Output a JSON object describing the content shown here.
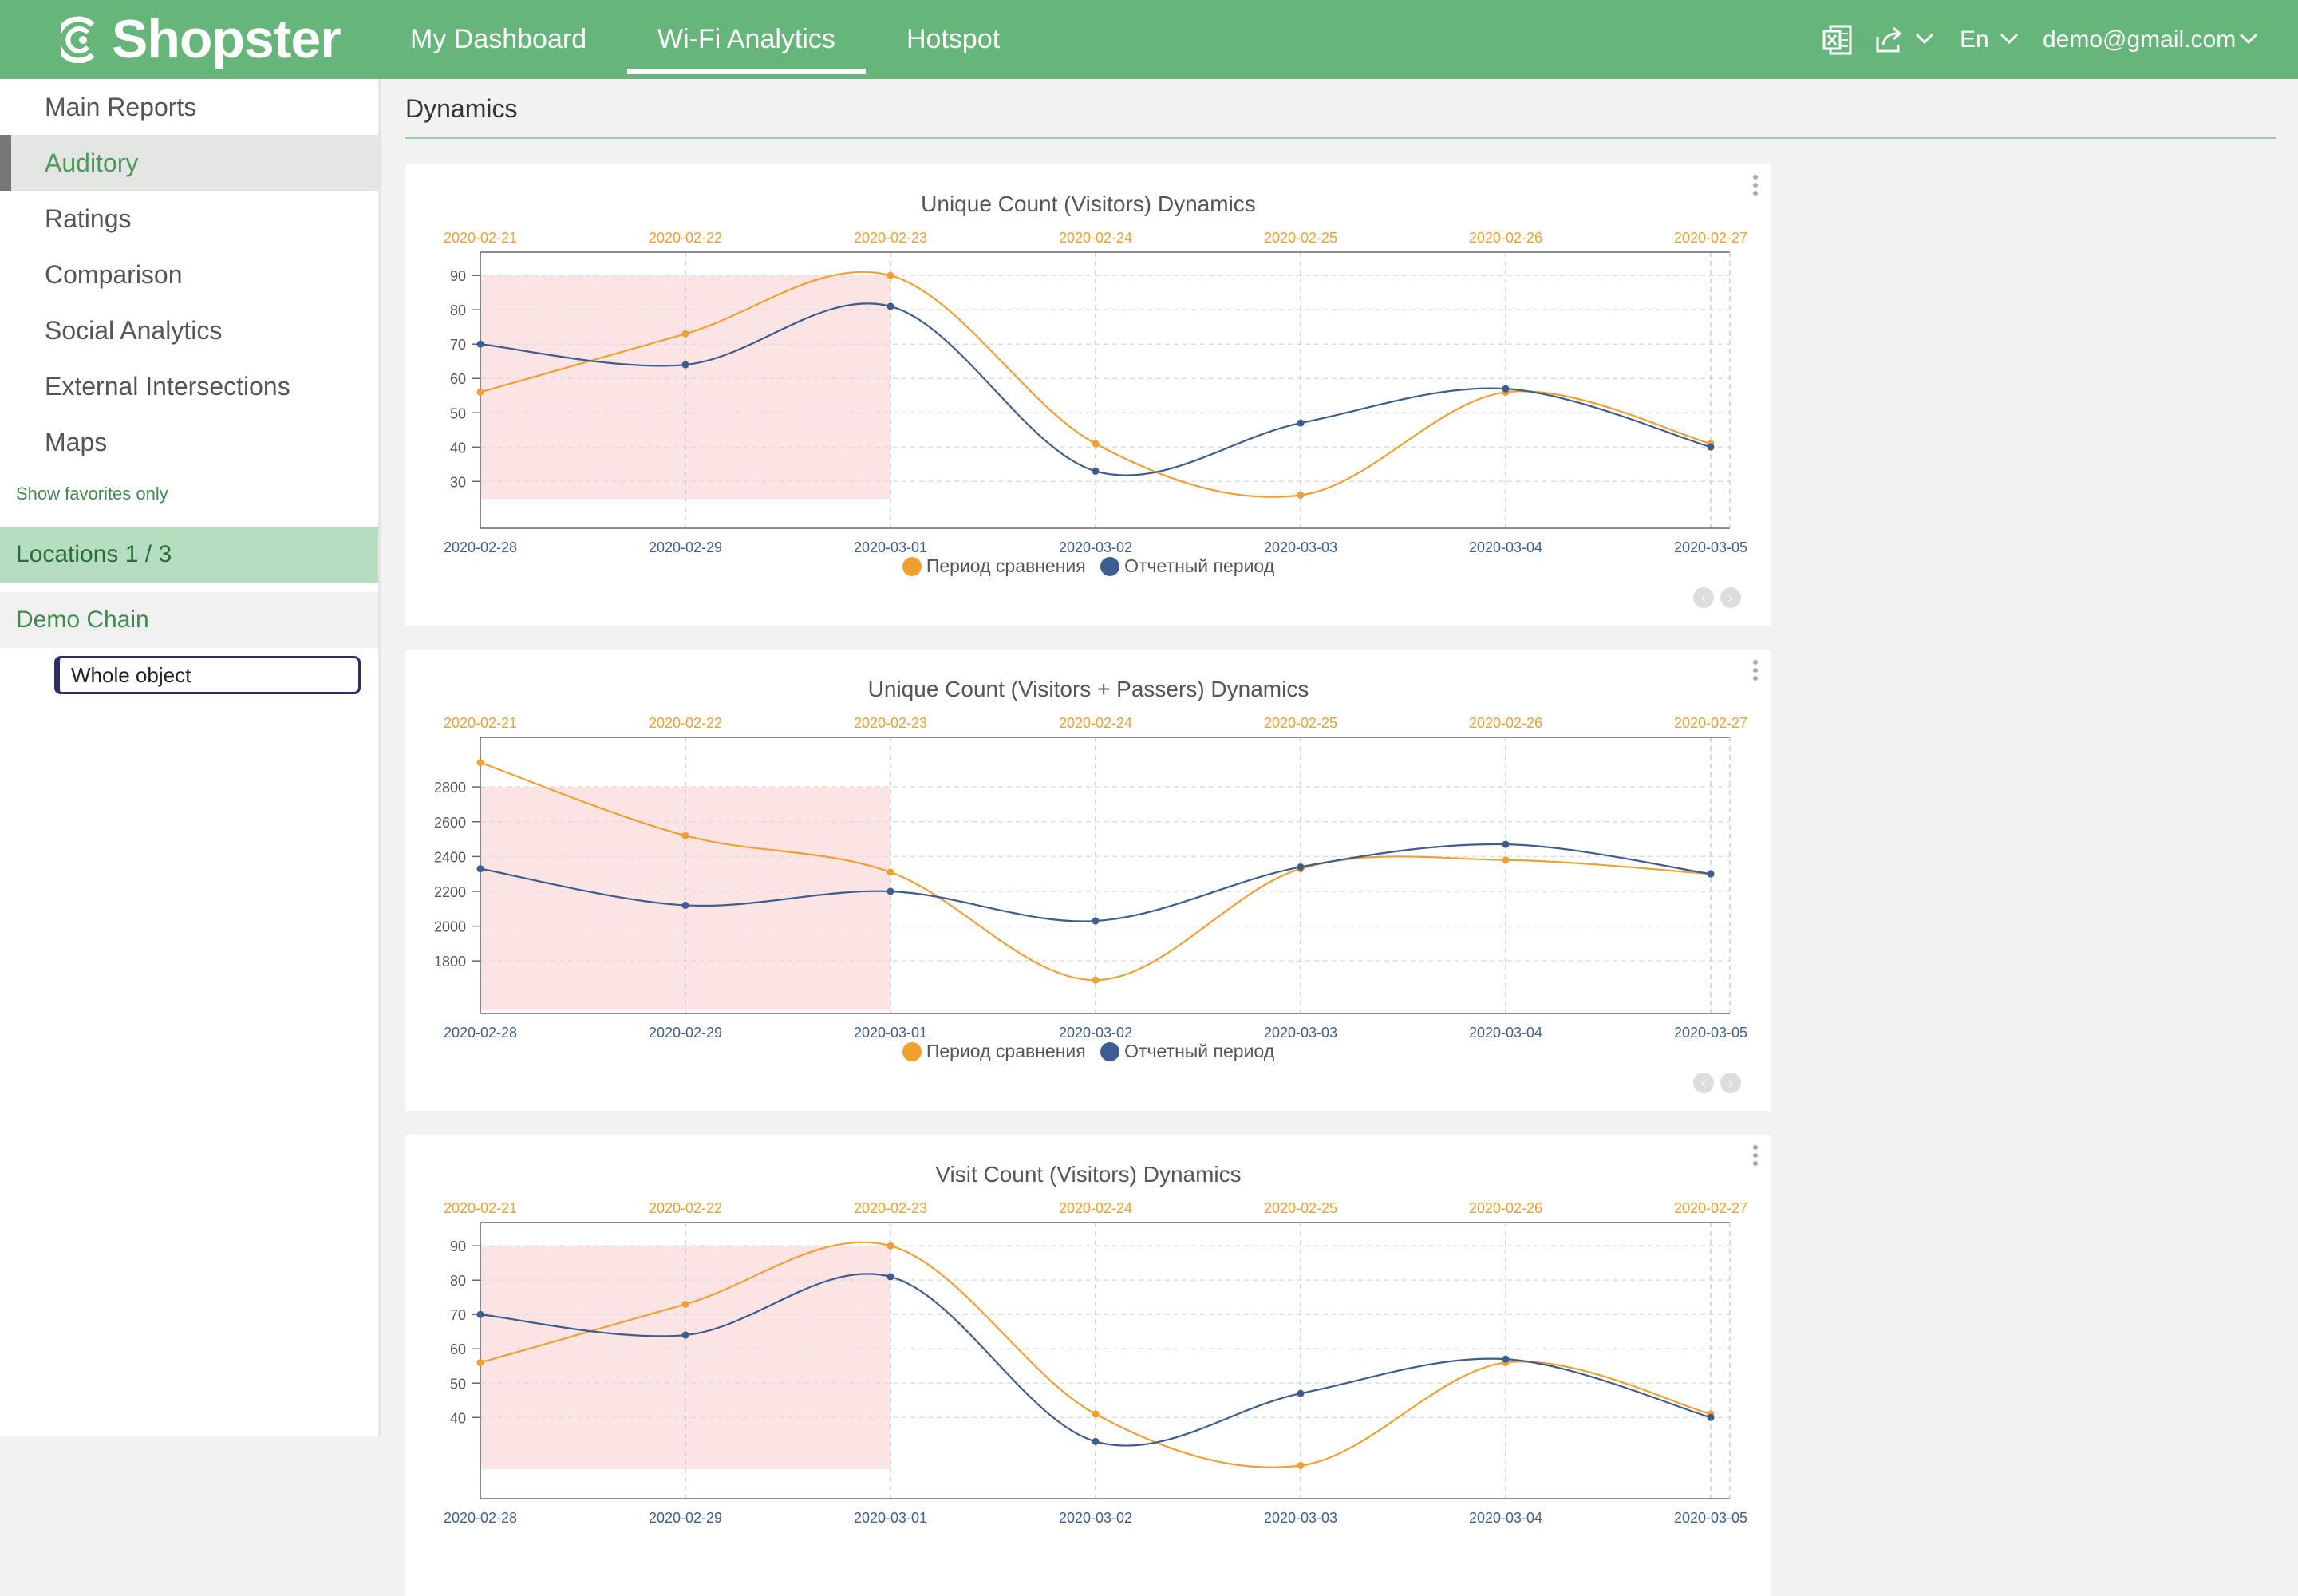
{
  "header": {
    "logo_text": "Shopster",
    "tabs": [
      {
        "label": "My Dashboard"
      },
      {
        "label": "Wi-Fi Analytics"
      },
      {
        "label": "Hotspot"
      }
    ],
    "language": "En",
    "user": "demo@gmail.com",
    "icons": [
      "excel-icon",
      "share-icon",
      "chevron-down-icon"
    ]
  },
  "sidebar": {
    "items": [
      {
        "label": "Main Reports"
      },
      {
        "label": "Auditory"
      },
      {
        "label": "Ratings"
      },
      {
        "label": "Comparison"
      },
      {
        "label": "Social Analytics"
      },
      {
        "label": "External Intersections"
      },
      {
        "label": "Maps"
      }
    ],
    "favorites_link": "Show favorites only",
    "locations_label": "Locations 1 / 3",
    "chain_label": "Demo Chain",
    "object_select": "Whole object"
  },
  "page": {
    "title": "Dynamics"
  },
  "legend": {
    "comparison": "Период сравнения",
    "reporting": "Отчетный период"
  },
  "colors": {
    "brand_green": "#66b57a",
    "comparison_series": "#f0a030",
    "reporting_series": "#3d5d8f",
    "highlight_band": "#fde4e4"
  },
  "chart_data": [
    {
      "type": "line",
      "title": "Unique Count (Visitors) Dynamics",
      "x_top": [
        "2020-02-21",
        "2020-02-22",
        "2020-02-23",
        "2020-02-24",
        "2020-02-25",
        "2020-02-26",
        "2020-02-27"
      ],
      "x_bottom": [
        "2020-02-28",
        "2020-02-29",
        "2020-03-01",
        "2020-03-02",
        "2020-03-03",
        "2020-03-04",
        "2020-03-05"
      ],
      "ylim": [
        21,
        94
      ],
      "yticks": [
        30,
        40,
        50,
        60,
        70,
        80,
        90
      ],
      "highlight": [
        0,
        2
      ],
      "grid": true,
      "legend_position": "bottom",
      "series": [
        {
          "name": "Период сравнения",
          "axis": "top",
          "values": [
            56,
            73,
            90,
            41,
            26,
            56,
            41
          ]
        },
        {
          "name": "Отчетный период",
          "axis": "bottom",
          "values": [
            70,
            64,
            81,
            33,
            47,
            57,
            40
          ]
        }
      ]
    },
    {
      "type": "line",
      "title": "Unique Count (Visitors + Passers) Dynamics",
      "x_top": [
        "2020-02-21",
        "2020-02-22",
        "2020-02-23",
        "2020-02-24",
        "2020-02-25",
        "2020-02-26",
        "2020-02-27"
      ],
      "x_bottom": [
        "2020-02-28",
        "2020-02-29",
        "2020-03-01",
        "2020-03-02",
        "2020-03-03",
        "2020-03-04",
        "2020-03-05"
      ],
      "ylim": [
        1590,
        3030
      ],
      "yticks": [
        1800,
        2000,
        2200,
        2400,
        2600,
        2800
      ],
      "highlight": [
        0,
        2
      ],
      "grid": true,
      "legend_position": "bottom",
      "series": [
        {
          "name": "Период сравнения",
          "axis": "top",
          "values": [
            2940,
            2520,
            2310,
            1690,
            2330,
            2380,
            2300
          ]
        },
        {
          "name": "Отчетный период",
          "axis": "bottom",
          "values": [
            2330,
            2120,
            2200,
            2030,
            2340,
            2470,
            2300
          ]
        }
      ]
    },
    {
      "type": "line",
      "title": "Visit Count (Visitors) Dynamics",
      "x_top": [
        "2020-02-21",
        "2020-02-22",
        "2020-02-23",
        "2020-02-24",
        "2020-02-25",
        "2020-02-26",
        "2020-02-27"
      ],
      "x_bottom": [
        "2020-02-28",
        "2020-02-29",
        "2020-03-01",
        "2020-03-02",
        "2020-03-03",
        "2020-03-04",
        "2020-03-05"
      ],
      "ylim": [
        21,
        94
      ],
      "yticks": [
        40,
        50,
        60,
        70,
        80,
        90
      ],
      "highlight": [
        0,
        2
      ],
      "grid": true,
      "legend_position": "bottom",
      "series": [
        {
          "name": "Период сравнения",
          "axis": "top",
          "values": [
            56,
            73,
            90,
            41,
            26,
            56,
            41
          ]
        },
        {
          "name": "Отчетный период",
          "axis": "bottom",
          "values": [
            70,
            64,
            81,
            33,
            47,
            57,
            40
          ]
        }
      ]
    }
  ]
}
